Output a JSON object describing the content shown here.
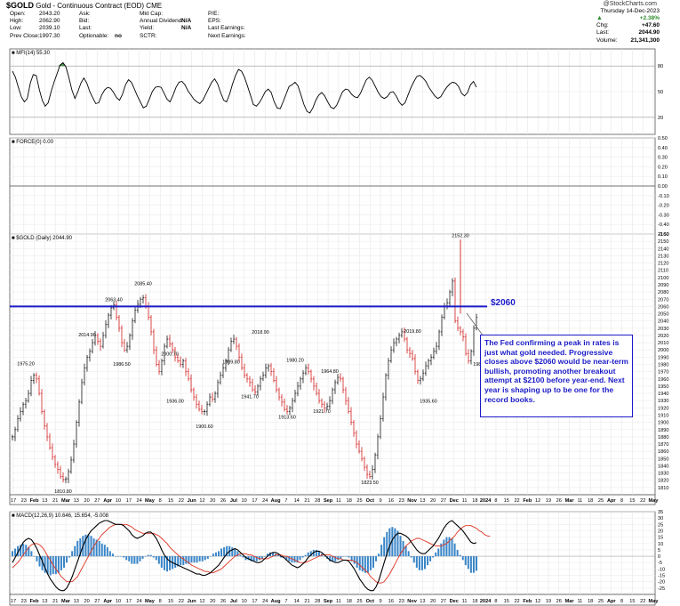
{
  "header": {
    "symbol": "$GOLD",
    "description": "Gold - Continuous Contract (EOD) CME",
    "copyright": "@StockCharts.com",
    "date": "Thursday 14-Dec-2023",
    "col1": [
      {
        "label": "Open:",
        "value": "2043.20"
      },
      {
        "label": "High:",
        "value": "2062.90"
      },
      {
        "label": "Low:",
        "value": "2039.10"
      },
      {
        "label": "Prev Close:",
        "value": "1997.30"
      }
    ],
    "col2": [
      {
        "label": "Ask:",
        "value": ""
      },
      {
        "label": "Bid:",
        "value": ""
      },
      {
        "label": "Last:",
        "value": ""
      },
      {
        "label": "Optionable:",
        "value": "no"
      }
    ],
    "col3": [
      {
        "label": "Mkt Cap:",
        "value": ""
      },
      {
        "label": "Annual Dividend:",
        "value": "N/A"
      },
      {
        "label": "Yield:",
        "value": "N/A"
      },
      {
        "label": "SCTR:",
        "value": ""
      }
    ],
    "col4": [
      "P/E:",
      "EPS:",
      "Last Earnings:",
      "Next Earnings:"
    ],
    "right": [
      {
        "label": "",
        "value": "+2.38%"
      },
      {
        "label": "Chg:",
        "value": "+47.60"
      },
      {
        "label": "Last:",
        "value": "2044.90"
      },
      {
        "label": "Volume:",
        "value": "21,341,300"
      }
    ]
  },
  "annotation": {
    "level_label": "$2060",
    "callout": "The Fed confirming a peak in rates is just what gold needed. Progressive closes above $2060 would be near-term bullish, promoting another breakout attempt at $2100 before year-end. Next year is shaping up to be one for the record books."
  },
  "colors": {
    "hline": "#1b1bc8",
    "up": "#1a1a1a",
    "down": "#d42020",
    "mfi": "#000000",
    "shade": "#3e8a3e",
    "macd": "#000000",
    "signal": "#e0301e",
    "hist": "#3a86c8"
  },
  "x_axis": {
    "labels": [
      "17",
      "23",
      "Feb",
      "13",
      "21",
      "Mar",
      "13",
      "20",
      "27",
      "Apr",
      "10",
      "17",
      "24",
      "May",
      "8",
      "15",
      "22",
      "Jun",
      "12",
      "20",
      "26",
      "Jul",
      "10",
      "17",
      "24",
      "Aug",
      "7",
      "14",
      "21",
      "28",
      "Sep",
      "11",
      "18",
      "25",
      "Oct",
      "9",
      "16",
      "23",
      "Nov",
      "13",
      "20",
      "27",
      "Dec",
      "11",
      "18",
      "2024",
      "8",
      "15",
      "22",
      "Feb",
      "12",
      "19",
      "26",
      "Mar",
      "11",
      "18",
      "25",
      "Apr",
      "8",
      "15",
      "22",
      "May"
    ],
    "bold": [
      "Feb",
      "Mar",
      "Apr",
      "May",
      "Jun",
      "Jul",
      "Aug",
      "Sep",
      "Oct",
      "Nov",
      "Dec",
      "2024"
    ]
  },
  "panels": [
    {
      "title": "MFI(14) 55.30",
      "type": "line",
      "ylim": [
        0,
        100
      ],
      "ticks": [
        20,
        50,
        80
      ],
      "guides": [
        20,
        80
      ],
      "values": [
        74,
        67,
        55,
        44,
        38,
        42,
        60,
        70,
        69,
        53,
        40,
        33,
        37,
        50,
        61,
        71,
        81,
        84,
        79,
        66,
        52,
        42,
        50,
        60,
        66,
        60,
        50,
        43,
        36,
        37,
        46,
        52,
        55,
        54,
        49,
        43,
        40,
        47,
        58,
        64,
        61,
        53,
        45,
        38,
        31,
        33,
        41,
        50,
        55,
        56,
        55,
        48,
        41,
        38,
        46,
        55,
        61,
        62,
        58,
        51,
        46,
        41,
        38,
        36,
        40,
        47,
        54,
        61,
        65,
        59,
        49,
        40,
        38,
        47,
        59,
        69,
        76,
        74,
        67,
        57,
        46,
        35,
        33,
        37,
        43,
        50,
        53,
        49,
        38,
        31,
        30,
        38,
        47,
        56,
        58,
        61,
        57,
        46,
        35,
        27,
        25,
        31,
        40,
        46,
        49,
        45,
        38,
        32,
        30,
        34,
        42,
        50,
        53,
        52,
        47,
        44,
        43,
        48,
        56,
        64,
        67,
        63,
        56,
        49,
        44,
        42,
        44,
        49,
        50,
        45,
        38,
        34,
        37,
        46,
        55,
        62,
        68,
        69,
        66,
        62,
        55,
        50,
        45,
        42,
        44,
        50,
        55,
        59,
        61,
        60,
        56,
        48,
        45,
        49,
        58,
        62,
        55.3
      ]
    },
    {
      "title": "FORCE(0) 0.00",
      "type": "flat",
      "ylim": [
        -0.5,
        0.5
      ],
      "ticks": [
        -0.5,
        -0.4,
        -0.3,
        -0.2,
        -0.1,
        0.0,
        0.1,
        0.2,
        0.3,
        0.4,
        0.5
      ],
      "value": 0.0
    },
    {
      "title": "$GOLD (Daily) 2044.90",
      "type": "ohlc",
      "ylim": [
        1800,
        2160
      ],
      "ticks": [
        1810,
        1820,
        1830,
        1840,
        1850,
        1860,
        1870,
        1880,
        1890,
        1900,
        1910,
        1920,
        1930,
        1940,
        1950,
        1960,
        1970,
        1980,
        1990,
        2000,
        2010,
        2020,
        2030,
        2040,
        2050,
        2060,
        2070,
        2080,
        2090,
        2100,
        2110,
        2120,
        2130,
        2140,
        2150,
        2160
      ],
      "closes": [
        1880,
        1890,
        1905,
        1915,
        1925,
        1930,
        1940,
        1958,
        1965,
        1960,
        1940,
        1915,
        1895,
        1880,
        1865,
        1852,
        1842,
        1835,
        1825,
        1821,
        1822,
        1832,
        1848,
        1870,
        1900,
        1928,
        1955,
        1975,
        1990,
        1998,
        2010,
        2020,
        2012,
        2005,
        2020,
        2035,
        2048,
        2058,
        2062,
        2045,
        2030,
        2010,
        2000,
        2005,
        2020,
        2040,
        2055,
        2063,
        2070,
        2072,
        2060,
        2045,
        2025,
        2000,
        1980,
        1970,
        1985,
        2005,
        2015,
        2008,
        2000,
        1990,
        1985,
        1980,
        1985,
        1970,
        1960,
        1945,
        1935,
        1925,
        1918,
        1915,
        1915,
        1925,
        1935,
        1932,
        1940,
        1955,
        1965,
        1975,
        1985,
        2000,
        2012,
        2015,
        2005,
        1990,
        1975,
        1965,
        1960,
        1955,
        1945,
        1942,
        1950,
        1960,
        1965,
        1975,
        1978,
        1970,
        1958,
        1945,
        1935,
        1928,
        1918,
        1915,
        1920,
        1930,
        1940,
        1950,
        1960,
        1968,
        1975,
        1970,
        1960,
        1950,
        1940,
        1930,
        1925,
        1920,
        1922,
        1930,
        1945,
        1955,
        1962,
        1960,
        1945,
        1930,
        1915,
        1900,
        1885,
        1870,
        1860,
        1850,
        1838,
        1828,
        1825,
        1835,
        1855,
        1880,
        1905,
        1935,
        1965,
        1985,
        2000,
        2010,
        2015,
        2020,
        2025,
        2015,
        2000,
        1995,
        1988,
        1970,
        1958,
        1960,
        1968,
        1978,
        1985,
        1990,
        1998,
        2005,
        2025,
        2045,
        2060,
        2065,
        2080,
        2095,
        2040,
        2030,
        2025,
        2018,
        1995,
        1985,
        1998,
        2030,
        2044.9
      ],
      "annotations": [
        {
          "i": 5,
          "text": "1975.20"
        },
        {
          "i": 19,
          "text": "1810.80"
        },
        {
          "i": 28,
          "text": "2014.90"
        },
        {
          "i": 38,
          "text": "2063.40"
        },
        {
          "i": 41,
          "text": "1986.50"
        },
        {
          "i": 49,
          "text": "2085.40"
        },
        {
          "i": 59,
          "text": "2000.70"
        },
        {
          "i": 61,
          "text": "1936.00"
        },
        {
          "i": 72,
          "text": "1900.60"
        },
        {
          "i": 82,
          "text": "1989.80"
        },
        {
          "i": 89,
          "text": "1941.70"
        },
        {
          "i": 93,
          "text": "2018.90"
        },
        {
          "i": 103,
          "text": "1913.60"
        },
        {
          "i": 106,
          "text": "1980.20"
        },
        {
          "i": 116,
          "text": "1921.70"
        },
        {
          "i": 119,
          "text": "1964.80"
        },
        {
          "i": 134,
          "text": "1823.50"
        },
        {
          "i": 150,
          "text": "2019.80"
        },
        {
          "i": 156,
          "text": "1935.60"
        },
        {
          "i": 168,
          "text": "2152.30"
        },
        {
          "i": 176,
          "text": "1987.00"
        }
      ],
      "hline": 2060
    },
    {
      "title": "MACD(12,26,9) 10.646, 15.654, -5.008",
      "type": "macd",
      "ylim": [
        -30,
        35
      ],
      "ticks": [
        -25,
        -20,
        -15,
        -10,
        -5,
        0,
        5,
        10,
        15,
        20,
        25,
        30,
        35
      ],
      "macd": [
        -5,
        -1,
        3,
        7,
        11,
        13,
        14,
        13,
        10,
        6,
        1,
        -4,
        -9,
        -14,
        -18,
        -21,
        -24,
        -26,
        -27,
        -27,
        -25,
        -21,
        -16,
        -10,
        -4,
        2,
        8,
        13,
        17,
        20,
        22,
        24,
        26,
        27,
        28,
        28,
        27,
        26,
        25,
        25,
        25,
        24,
        22,
        20,
        17,
        15,
        14,
        15,
        16,
        18,
        19,
        19,
        17,
        14,
        10,
        5,
        1,
        -2,
        -4,
        -5,
        -6,
        -7,
        -8,
        -9,
        -10,
        -11,
        -12,
        -13,
        -14,
        -14,
        -15,
        -15,
        -14,
        -13,
        -11,
        -9,
        -7,
        -4,
        -1,
        2,
        4,
        5,
        6,
        5,
        3,
        1,
        -1,
        -2,
        -3,
        -4,
        -5,
        -5,
        -4,
        -2,
        0,
        2,
        3,
        3,
        2,
        0,
        -1,
        -3,
        -5,
        -7,
        -8,
        -9,
        -8,
        -6,
        -4,
        -1,
        1,
        3,
        4,
        4,
        3,
        1,
        -1,
        -3,
        -4,
        -5,
        -5,
        -4,
        -3,
        -3,
        -4,
        -7,
        -10,
        -14,
        -18,
        -21,
        -24,
        -26,
        -27,
        -27,
        -24,
        -19,
        -12,
        -5,
        2,
        8,
        13,
        16,
        18,
        18,
        17,
        16,
        14,
        11,
        8,
        5,
        3,
        2,
        2,
        4,
        6,
        8,
        11,
        14,
        18,
        22,
        25,
        27,
        28,
        26,
        24,
        22,
        20,
        17,
        14,
        11,
        10,
        10.6
      ],
      "signal": [
        -9,
        -7,
        -5,
        -2,
        1,
        4,
        7,
        9,
        10,
        10,
        9,
        7,
        4,
        0,
        -3,
        -7,
        -10,
        -13,
        -16,
        -18,
        -20,
        -20,
        -20,
        -18,
        -16,
        -12,
        -8,
        -4,
        0,
        4,
        8,
        11,
        14,
        17,
        19,
        21,
        23,
        24,
        25,
        25,
        25,
        25,
        25,
        24,
        23,
        21,
        20,
        19,
        18,
        18,
        18,
        18,
        18,
        17,
        16,
        14,
        12,
        10,
        7,
        5,
        3,
        1,
        -1,
        -2,
        -4,
        -5,
        -7,
        -8,
        -9,
        -10,
        -11,
        -12,
        -12,
        -13,
        -13,
        -12,
        -11,
        -10,
        -8,
        -6,
        -4,
        -2,
        0,
        1,
        2,
        2,
        2,
        1,
        1,
        0,
        -1,
        -2,
        -2,
        -2,
        -2,
        -1,
        0,
        1,
        1,
        1,
        0,
        0,
        -1,
        -2,
        -3,
        -4,
        -5,
        -5,
        -5,
        -4,
        -3,
        -2,
        -1,
        0,
        1,
        1,
        1,
        1,
        0,
        -1,
        -2,
        -2,
        -3,
        -3,
        -3,
        -3,
        -4,
        -5,
        -7,
        -9,
        -11,
        -13,
        -16,
        -18,
        -20,
        -21,
        -21,
        -20,
        -17,
        -14,
        -10,
        -6,
        -2,
        2,
        5,
        8,
        10,
        12,
        13,
        14,
        14,
        13,
        12,
        11,
        10,
        9,
        8,
        8,
        8,
        9,
        10,
        12,
        14,
        16,
        19,
        21,
        23,
        24,
        24,
        24,
        23,
        22,
        20,
        19,
        17,
        16,
        15.7
      ]
    }
  ]
}
